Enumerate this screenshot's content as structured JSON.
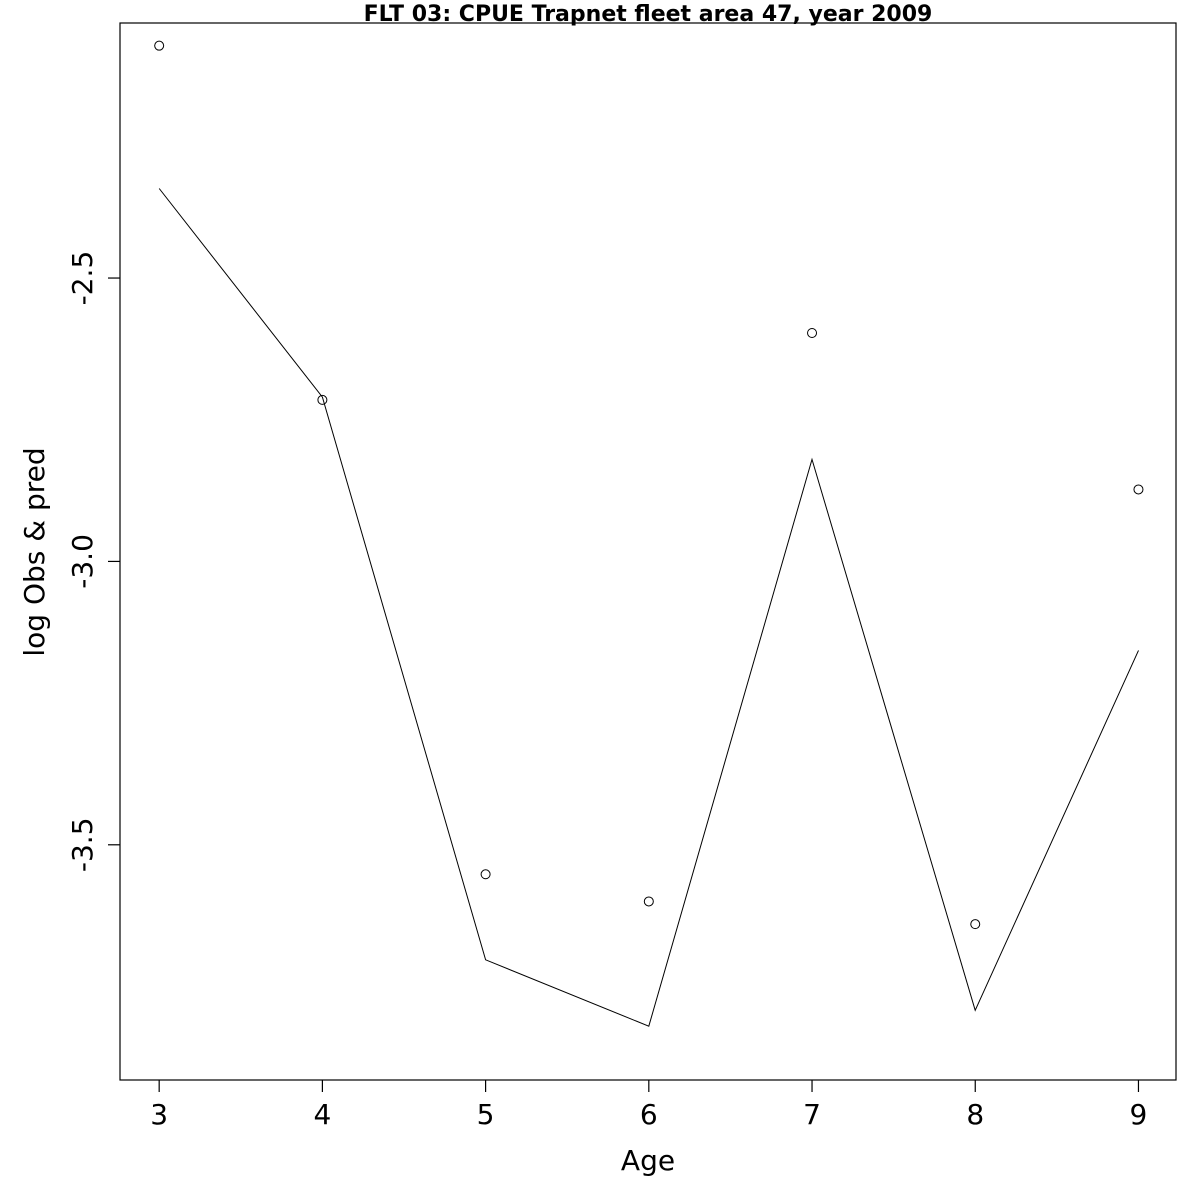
{
  "chart_data": {
    "type": "scatter",
    "title": "FLT 03: CPUE Trapnet fleet area 47, year 2009",
    "xlabel": "Age",
    "ylabel": "log Obs & pred",
    "x": [
      3,
      4,
      5,
      6,
      7,
      8,
      9
    ],
    "xlim": [
      2.76,
      9.23
    ],
    "ylim": [
      -3.915,
      -2.05
    ],
    "x_ticks": [
      "3",
      "4",
      "5",
      "6",
      "7",
      "8",
      "9"
    ],
    "y_ticks": [
      "-2.5",
      "-3.0",
      "-3.5"
    ],
    "series": [
      {
        "kind": "points",
        "marker": "open-circle",
        "values": [
          -2.09,
          -2.715,
          -3.552,
          -3.6,
          -2.597,
          -3.64,
          -2.873
        ]
      },
      {
        "kind": "line",
        "values": [
          -2.342,
          -2.71,
          -3.703,
          -3.82,
          -2.82,
          -3.792,
          -3.157
        ]
      }
    ],
    "grid": false,
    "legend": "none",
    "colors": {
      "line": "#000000",
      "points": "#000000",
      "background": "#ffffff"
    }
  }
}
